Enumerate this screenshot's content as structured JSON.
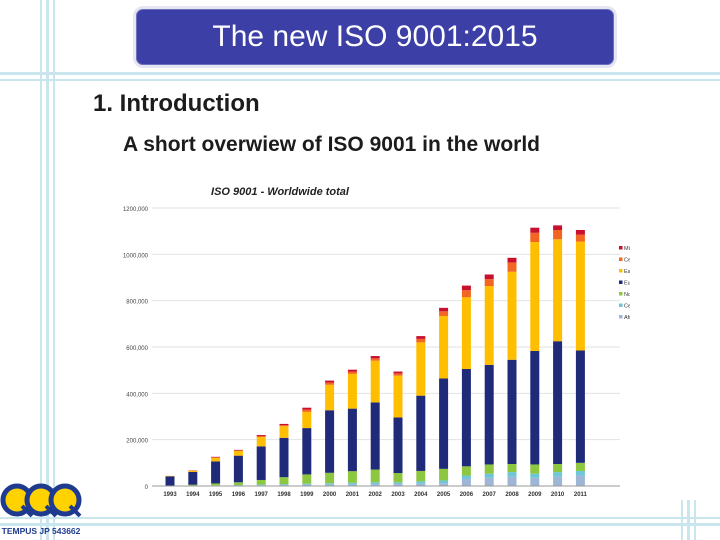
{
  "slide": {
    "title": "The new ISO 9001:2015",
    "heading": "1. Introduction",
    "subheading": "A short overwiew of ISO 9001 in the world",
    "logo_text": "TEMPUS JP 543662"
  },
  "colors": {
    "title_bg": "#3b3fa6",
    "decor": "#c9e6ef",
    "Middle East": "#c8102e",
    "Central and South Asia": "#f26522",
    "East Asia and Pacific": "#ffbf00",
    "Europe": "#1f2a78",
    "North America": "#8dc63f",
    "Central and South America": "#6fc6d8",
    "Africa": "#9fb5d6"
  },
  "chart_data": {
    "type": "bar",
    "stacked": true,
    "title": "ISO 9001 - Worldwide total",
    "xlabel": "",
    "ylabel": "",
    "ylim": [
      0,
      1200000
    ],
    "yticks": [
      0,
      200000,
      400000,
      600000,
      800000,
      1000000,
      1200000
    ],
    "ytick_labels": [
      "0",
      "200,000",
      "400,000",
      "600,000",
      "800,000",
      "1000,000",
      "1200,000"
    ],
    "grid": true,
    "legend_position": "right",
    "categories": [
      "1993",
      "1994",
      "1995",
      "1996",
      "1997",
      "1998",
      "1999",
      "2000",
      "2001",
      "2002",
      "2003",
      "2004",
      "2005",
      "2006",
      "2007",
      "2008",
      "2009",
      "2010",
      "2011"
    ],
    "series": [
      {
        "name": "Africa",
        "values": [
          0,
          1000,
          2000,
          2000,
          3000,
          4000,
          5000,
          6000,
          7000,
          8000,
          8000,
          10000,
          12000,
          30000,
          35000,
          40000,
          35000,
          40000,
          45000
        ]
      },
      {
        "name": "Central and South America",
        "values": [
          0,
          500,
          1000,
          2000,
          3000,
          4000,
          5000,
          6000,
          7000,
          8000,
          8000,
          10000,
          12000,
          15000,
          18000,
          20000,
          18000,
          20000,
          20000
        ]
      },
      {
        "name": "North America",
        "values": [
          2000,
          4000,
          8000,
          12000,
          20000,
          30000,
          40000,
          45000,
          50000,
          55000,
          40000,
          45000,
          50000,
          40000,
          40000,
          35000,
          40000,
          35000,
          35000
        ]
      },
      {
        "name": "Europe",
        "values": [
          40000,
          55000,
          95000,
          115000,
          145000,
          170000,
          200000,
          270000,
          270000,
          290000,
          240000,
          325000,
          390000,
          420000,
          430000,
          450000,
          490000,
          530000,
          485000
        ]
      },
      {
        "name": "East Asia and Pacific",
        "values": [
          2000,
          5000,
          15000,
          20000,
          40000,
          50000,
          70000,
          110000,
          150000,
          180000,
          180000,
          230000,
          270000,
          310000,
          340000,
          380000,
          470000,
          440000,
          470000
        ]
      },
      {
        "name": "Central and South Asia",
        "values": [
          0,
          1000,
          3000,
          3000,
          5000,
          5000,
          10000,
          10000,
          10000,
          10000,
          10000,
          15000,
          20000,
          30000,
          30000,
          40000,
          40000,
          40000,
          30000
        ]
      },
      {
        "name": "Middle East",
        "values": [
          0,
          1000,
          2000,
          2000,
          4000,
          5000,
          8000,
          8000,
          8000,
          10000,
          8000,
          12000,
          15000,
          20000,
          20000,
          20000,
          22000,
          20000,
          20000
        ]
      }
    ]
  }
}
